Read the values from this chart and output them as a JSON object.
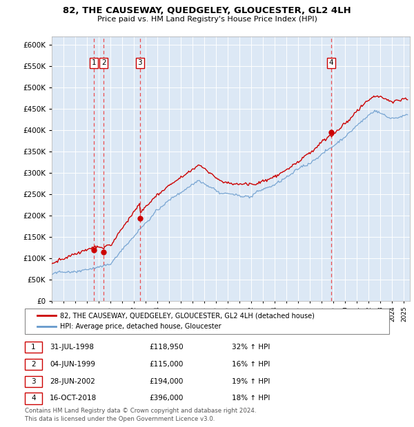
{
  "title": "82, THE CAUSEWAY, QUEDGELEY, GLOUCESTER, GL2 4LH",
  "subtitle": "Price paid vs. HM Land Registry's House Price Index (HPI)",
  "plot_bg_color": "#dce8f5",
  "ylim": [
    0,
    620000
  ],
  "yticks": [
    0,
    50000,
    100000,
    150000,
    200000,
    250000,
    300000,
    350000,
    400000,
    450000,
    500000,
    550000,
    600000
  ],
  "ytick_labels": [
    "£0",
    "£50K",
    "£100K",
    "£150K",
    "£200K",
    "£250K",
    "£300K",
    "£350K",
    "£400K",
    "£450K",
    "£500K",
    "£550K",
    "£600K"
  ],
  "sale_dates_year": [
    1998.58,
    1999.42,
    2002.5,
    2018.79
  ],
  "sale_prices": [
    118950,
    115000,
    194000,
    396000
  ],
  "sale_labels": [
    "1",
    "2",
    "3",
    "4"
  ],
  "red_line_color": "#cc0000",
  "blue_line_color": "#6699cc",
  "dashed_color": "#ee3333",
  "legend_label_red": "82, THE CAUSEWAY, QUEDGELEY, GLOUCESTER, GL2 4LH (detached house)",
  "legend_label_blue": "HPI: Average price, detached house, Gloucester",
  "table_entries": [
    {
      "num": "1",
      "date": "31-JUL-1998",
      "price": "£118,950",
      "change": "32% ↑ HPI"
    },
    {
      "num": "2",
      "date": "04-JUN-1999",
      "price": "£115,000",
      "change": "16% ↑ HPI"
    },
    {
      "num": "3",
      "date": "28-JUN-2002",
      "price": "£194,000",
      "change": "19% ↑ HPI"
    },
    {
      "num": "4",
      "date": "16-OCT-2018",
      "price": "£396,000",
      "change": "18% ↑ HPI"
    }
  ],
  "footer": "Contains HM Land Registry data © Crown copyright and database right 2024.\nThis data is licensed under the Open Government Licence v3.0.",
  "xstart": 1995.0,
  "xend": 2025.5
}
